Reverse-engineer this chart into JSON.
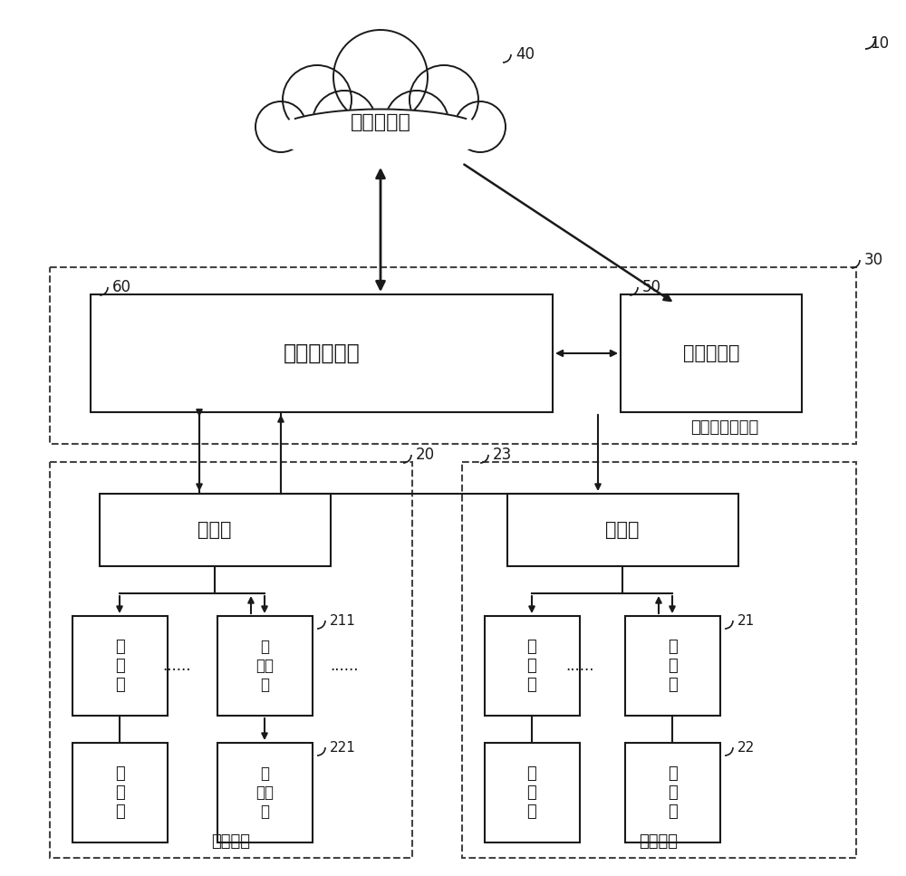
{
  "bg_color": "#ffffff",
  "line_color": "#1a1a1a",
  "dashed_color": "#444444",
  "title_ref": "10",
  "cloud_label": "云计算平台",
  "cloud_ref": "40",
  "iot_label": "物联管理平台",
  "iot_ref": "60",
  "server_label": "后台服务器",
  "server_ref": "50",
  "platform_label": "云多联管理平台",
  "platform_ref": "30",
  "outdoor_label": "室外机",
  "outdoor1_ref": "20",
  "outdoor2_ref": "23",
  "indoor_label": "室内机",
  "main_indoor_label": "主室内机",
  "wire_label": "线控器",
  "main_wire_label": "主线控器",
  "ac_group_label": "空调机组",
  "indoor_ref": "21",
  "wire_ref": "22",
  "main_indoor_ref": "211",
  "main_wire_ref": "221",
  "dots": "......",
  "figw": 10.0,
  "figh": 9.67,
  "dpi": 100
}
